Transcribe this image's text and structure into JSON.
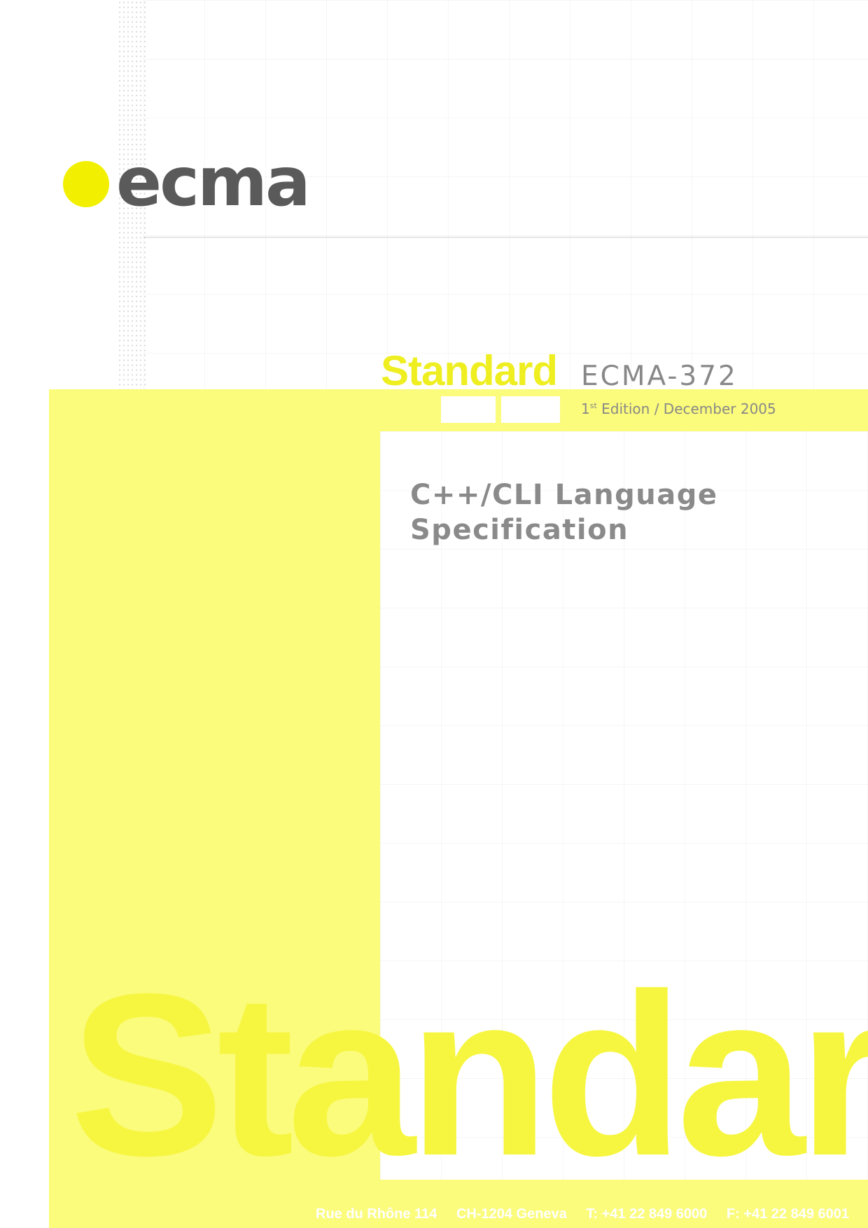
{
  "logo": {
    "text": "ecma",
    "dot_color": "#f2f000",
    "text_color": "#5a5a5a"
  },
  "heading": {
    "standard_word": "Standard",
    "document_number": "ECMA-372",
    "edition_number": "1",
    "edition_suffix": "st",
    "edition_rest": " Edition / December 2005"
  },
  "title": {
    "line1": "C++/CLI Language",
    "line2": "Specification"
  },
  "watermark": {
    "text": "Standard"
  },
  "footer": {
    "address": "Rue du Rhône 114",
    "city": "CH-1204 Geneva",
    "phone": "T: +41 22 849 6000",
    "fax": "F: +41 22 849 6001"
  },
  "colors": {
    "accent_yellow": "#fbfb7c",
    "text_gray": "#888888"
  }
}
